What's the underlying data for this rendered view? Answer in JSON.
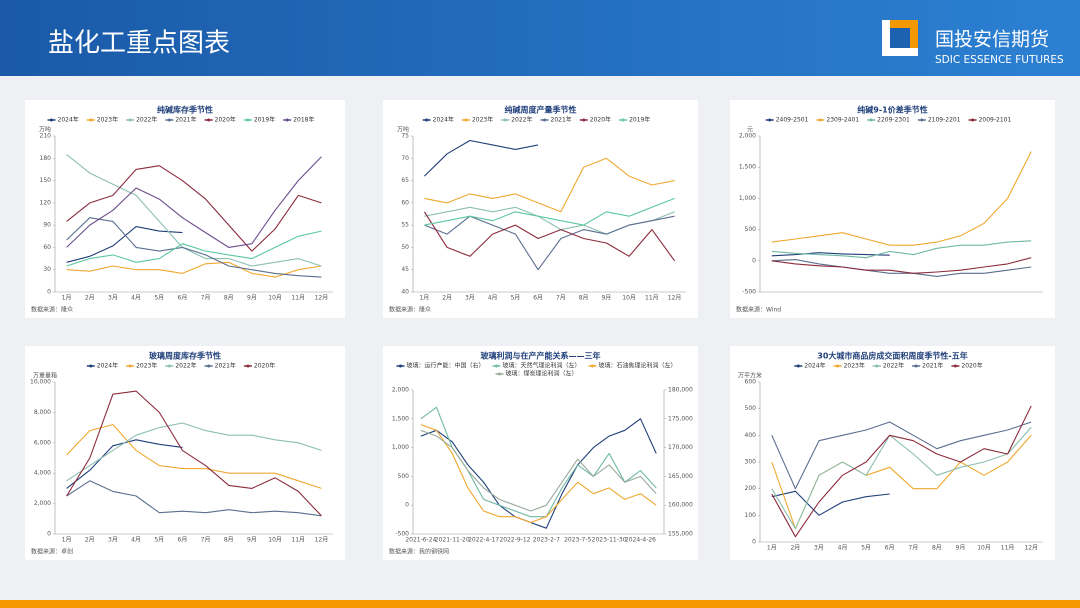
{
  "header": {
    "title": "盐化工重点图表",
    "logo_cn": "国投安信期货",
    "logo_en": "SDIC ESSENCE FUTURES"
  },
  "chart_data": [
    {
      "type": "line",
      "title": "纯碱库存季节性",
      "ylabel": "万吨",
      "source": "数据来源：隆众",
      "categories": [
        "1月",
        "2月",
        "3月",
        "4月",
        "5月",
        "6月",
        "7月",
        "8月",
        "9月",
        "10月",
        "11月",
        "12月"
      ],
      "ylim": [
        0,
        210
      ],
      "yticks": [
        0,
        30,
        60,
        90,
        120,
        150,
        180,
        210
      ],
      "grid": false,
      "series": [
        {
          "name": "2024年",
          "color": "#1f3f7a",
          "values": [
            40,
            48,
            62,
            88,
            82,
            80,
            null,
            null,
            null,
            null,
            null,
            null
          ]
        },
        {
          "name": "2023年",
          "color": "#f0a830",
          "values": [
            30,
            28,
            35,
            30,
            30,
            25,
            38,
            40,
            25,
            20,
            30,
            35
          ]
        },
        {
          "name": "2022年",
          "color": "#8cbfb2",
          "values": [
            185,
            160,
            145,
            130,
            95,
            60,
            45,
            45,
            35,
            40,
            45,
            35
          ]
        },
        {
          "name": "2021年",
          "color": "#5b6f8f",
          "values": [
            70,
            100,
            95,
            60,
            55,
            60,
            50,
            35,
            30,
            25,
            22,
            20
          ]
        },
        {
          "name": "2020年",
          "color": "#8b2b3c",
          "values": [
            95,
            120,
            130,
            165,
            170,
            150,
            125,
            90,
            55,
            85,
            130,
            120
          ]
        },
        {
          "name": "2019年",
          "color": "#5cc7a0",
          "values": [
            35,
            45,
            50,
            40,
            45,
            65,
            55,
            50,
            45,
            60,
            75,
            82
          ]
        },
        {
          "name": "2018年",
          "color": "#6b4d8c",
          "values": [
            60,
            90,
            110,
            140,
            125,
            100,
            80,
            60,
            65,
            110,
            150,
            182
          ]
        }
      ]
    },
    {
      "type": "line",
      "title": "纯碱周度产量季节性",
      "ylabel": "万吨",
      "source": "数据来源：隆众",
      "categories": [
        "1月",
        "2月",
        "3月",
        "4月",
        "5月",
        "6月",
        "7月",
        "8月",
        "9月",
        "10月",
        "11月",
        "12月"
      ],
      "ylim": [
        40,
        75
      ],
      "yticks": [
        40,
        45,
        50,
        55,
        60,
        65,
        70,
        75
      ],
      "grid": false,
      "series": [
        {
          "name": "2024年",
          "color": "#1f3f7a",
          "values": [
            66,
            71,
            74,
            73,
            72,
            73,
            null,
            null,
            null,
            null,
            null,
            null
          ]
        },
        {
          "name": "2023年",
          "color": "#f0a830",
          "values": [
            61,
            60,
            62,
            61,
            62,
            60,
            58,
            68,
            70,
            66,
            64,
            65
          ]
        },
        {
          "name": "2022年",
          "color": "#8cbfb2",
          "values": [
            57,
            58,
            59,
            58,
            59,
            57,
            54,
            55,
            53,
            55,
            56,
            58
          ]
        },
        {
          "name": "2021年",
          "color": "#5b6f8f",
          "values": [
            55,
            53,
            57,
            55,
            53,
            45,
            52,
            54,
            53,
            55,
            56,
            57
          ]
        },
        {
          "name": "2020年",
          "color": "#8b2b3c",
          "values": [
            58,
            50,
            48,
            53,
            55,
            52,
            54,
            52,
            51,
            48,
            54,
            47
          ]
        },
        {
          "name": "2019年",
          "color": "#5cc7a0",
          "values": [
            55,
            56,
            57,
            56,
            58,
            57,
            56,
            55,
            58,
            57,
            59,
            61
          ]
        }
      ]
    },
    {
      "type": "line",
      "title": "纯碱9-1价差季节性",
      "ylabel": "元",
      "source": "数据来源：Wind",
      "ylim": [
        -500,
        2000
      ],
      "yticks": [
        -500,
        0,
        500,
        {
          "value": 1000,
          "label": "1,000"
        },
        {
          "value": 1500,
          "label": "1,500"
        },
        {
          "value": 2000,
          "label": "2,000"
        }
      ],
      "grid": false,
      "series": [
        {
          "name": "2409-2501",
          "color": "#1f3f7a",
          "values": [
            80,
            100,
            130,
            110,
            100,
            90,
            null,
            null,
            null,
            null,
            null,
            null
          ]
        },
        {
          "name": "2309-2401",
          "color": "#f0a830",
          "values": [
            300,
            350,
            400,
            450,
            350,
            250,
            250,
            300,
            400,
            600,
            1000,
            1750
          ]
        },
        {
          "name": "2209-2301",
          "color": "#6fb8a5",
          "values": [
            150,
            120,
            100,
            80,
            50,
            150,
            100,
            200,
            250,
            250,
            300,
            320
          ]
        },
        {
          "name": "2109-2201",
          "color": "#5b6f8f",
          "values": [
            0,
            20,
            -50,
            -100,
            -150,
            -200,
            -200,
            -250,
            -200,
            -200,
            -150,
            -100
          ]
        },
        {
          "name": "2009-2101",
          "color": "#8b2b3c",
          "values": [
            0,
            -50,
            -80,
            -100,
            -150,
            -150,
            -200,
            -180,
            -150,
            -100,
            -50,
            50
          ]
        }
      ]
    },
    {
      "type": "line",
      "title": "玻璃周度库存季节性",
      "ylabel": "万重量箱",
      "source": "数据来源：卓创",
      "categories": [
        "1月",
        "2月",
        "3月",
        "4月",
        "5月",
        "6月",
        "7月",
        "8月",
        "9月",
        "10月",
        "11月",
        "12月"
      ],
      "ylim": [
        0,
        10000
      ],
      "yticks": [
        0,
        {
          "value": 2000,
          "label": "2,000"
        },
        {
          "value": 4000,
          "label": "4,000"
        },
        {
          "value": 6000,
          "label": "6,000"
        },
        {
          "value": 8000,
          "label": "8,000"
        },
        {
          "value": 10000,
          "label": "10,000"
        }
      ],
      "grid": false,
      "series": [
        {
          "name": "2024年",
          "color": "#1f3f7a",
          "values": [
            3000,
            4200,
            5800,
            6200,
            5900,
            5700,
            null,
            null,
            null,
            null,
            null,
            null
          ]
        },
        {
          "name": "2023年",
          "color": "#f0a830",
          "values": [
            5200,
            6800,
            7200,
            5500,
            4500,
            4300,
            4300,
            4000,
            4000,
            4000,
            3500,
            3000
          ]
        },
        {
          "name": "2022年",
          "color": "#8cbfb2",
          "values": [
            3500,
            4500,
            5500,
            6500,
            7000,
            7300,
            6800,
            6500,
            6500,
            6200,
            6000,
            5500
          ]
        },
        {
          "name": "2021年",
          "color": "#5b6f8f",
          "values": [
            2500,
            3500,
            2800,
            2500,
            1400,
            1500,
            1400,
            1600,
            1400,
            1500,
            1400,
            1200
          ]
        },
        {
          "name": "2020年",
          "color": "#8b2b3c",
          "values": [
            2500,
            5000,
            9200,
            9400,
            8000,
            5500,
            4500,
            3200,
            3000,
            3700,
            2800,
            1200
          ]
        }
      ]
    },
    {
      "type": "line",
      "title": "玻璃利润与在产产能关系——三年",
      "source": "数据来源：我的钢铁网",
      "categories": [
        "2021-6-24",
        null,
        "2021-11-20",
        null,
        "2022-4-17",
        null,
        "2022-9-12",
        null,
        "2023-2-7",
        null,
        "2023-7-5",
        null,
        "2023-11-30",
        null,
        "2024-4-26",
        null
      ],
      "ylim": [
        -500,
        2000
      ],
      "yticks": [
        -500,
        0,
        500,
        {
          "value": 1000,
          "label": "1,000"
        },
        {
          "value": 1500,
          "label": "1,500"
        },
        {
          "value": 2000,
          "label": "2,000"
        }
      ],
      "y2lim": [
        155000,
        180000
      ],
      "y2ticks": [
        {
          "value": 155000,
          "label": "155,000"
        },
        {
          "value": 160000,
          "label": "160,000"
        },
        {
          "value": 165000,
          "label": "165,000"
        },
        {
          "value": 170000,
          "label": "170,000"
        },
        {
          "value": 175000,
          "label": "175,000"
        },
        {
          "value": 180000,
          "label": "180,000"
        }
      ],
      "grid": false,
      "series": [
        {
          "name": "玻璃：运行产能：中国（右）",
          "color": "#1f3f7a",
          "axis": "y2",
          "values": [
            172000,
            173000,
            171000,
            167000,
            164000,
            160000,
            158000,
            157000,
            156000,
            162000,
            167000,
            170000,
            172000,
            173000,
            175000,
            169000
          ]
        },
        {
          "name": "玻璃：天然气理论利润（左）",
          "color": "#6fb8a5",
          "values": [
            1500,
            1700,
            1000,
            600,
            100,
            0,
            -100,
            -200,
            -200,
            300,
            700,
            500,
            900,
            400,
            600,
            300
          ]
        },
        {
          "name": "玻璃：石油焦理论利润（左）",
          "color": "#f0a830",
          "values": [
            1400,
            1300,
            900,
            300,
            -100,
            -200,
            -200,
            -300,
            -200,
            100,
            400,
            200,
            300,
            100,
            200,
            0
          ]
        },
        {
          "name": "玻璃：煤炭理论利润（左）",
          "color": "#9aaa9a",
          "values": [
            1300,
            1200,
            1000,
            600,
            300,
            100,
            0,
            -100,
            0,
            400,
            800,
            500,
            700,
            400,
            500,
            200
          ]
        }
      ]
    },
    {
      "type": "line",
      "title": "30大城市商品房成交面积周度季节性-五年",
      "ylabel": "万平方米",
      "categories": [
        "1月",
        "2月",
        "3月",
        "4月",
        "5月",
        "6月",
        "7月",
        "8月",
        "9月",
        "10月",
        "11月",
        "12月"
      ],
      "ylim": [
        0,
        600
      ],
      "yticks": [
        0,
        100,
        200,
        300,
        400,
        500,
        600
      ],
      "grid": false,
      "series": [
        {
          "name": "2024年",
          "color": "#1f3f7a",
          "values": [
            170,
            190,
            100,
            150,
            170,
            180,
            null,
            null,
            null,
            null,
            null,
            null
          ]
        },
        {
          "name": "2023年",
          "color": "#f0a830",
          "values": [
            300,
            50,
            250,
            300,
            250,
            280,
            200,
            200,
            300,
            250,
            300,
            400
          ]
        },
        {
          "name": "2022年",
          "color": "#8cbfb2",
          "values": [
            200,
            50,
            250,
            300,
            250,
            400,
            330,
            250,
            280,
            300,
            330,
            430
          ]
        },
        {
          "name": "2021年",
          "color": "#5b6f8f",
          "values": [
            400,
            200,
            380,
            400,
            420,
            450,
            400,
            350,
            380,
            400,
            420,
            450
          ]
        },
        {
          "name": "2020年",
          "color": "#8b2b3c",
          "values": [
            180,
            20,
            150,
            250,
            300,
            400,
            380,
            330,
            300,
            350,
            330,
            510
          ]
        }
      ]
    }
  ]
}
